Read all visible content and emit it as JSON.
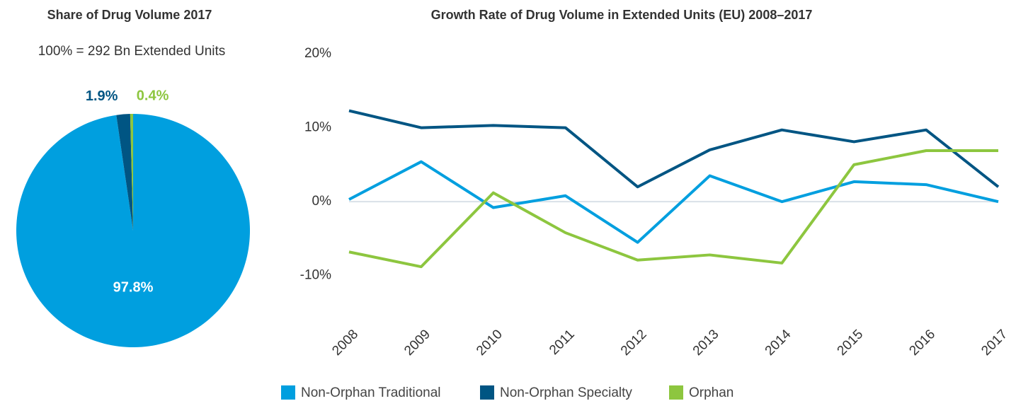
{
  "chart_data": [
    {
      "type": "pie",
      "title": "Share of Drug Volume 2017",
      "subtitle": "100% = 292 Bn Extended Units",
      "values": [
        97.8,
        1.9,
        0.4
      ],
      "value_labels": [
        "97.8%",
        "1.9%",
        "0.4%"
      ],
      "colors": [
        "#009fdf",
        "#005583",
        "#8dc63f"
      ]
    },
    {
      "type": "line",
      "title": "Growth Rate of Drug Volume in Extended Units (EU) 2008–2017",
      "categories": [
        "2008",
        "2009",
        "2010",
        "2011",
        "2012",
        "2013",
        "2014",
        "2015",
        "2016",
        "2017"
      ],
      "series": [
        {
          "name": "Non-Orphan Traditional",
          "color": "#009fdf",
          "values": [
            0.3,
            5.4,
            -0.8,
            0.8,
            -5.5,
            3.5,
            0,
            2.7,
            2.3,
            0
          ]
        },
        {
          "name": "Non-Orphan Specialty",
          "color": "#005583",
          "values": [
            12.3,
            10.0,
            10.3,
            10.0,
            2.0,
            7.0,
            9.7,
            8.1,
            9.7,
            2.0
          ]
        },
        {
          "name": "Orphan",
          "color": "#8dc63f",
          "values": [
            -6.8,
            -8.8,
            1.2,
            -4.2,
            -7.9,
            -7.2,
            -8.3,
            5.0,
            6.9,
            6.9
          ]
        }
      ],
      "ylim": [
        -15,
        20
      ],
      "yticks": [
        {
          "value": -10,
          "label": "-10%"
        },
        {
          "value": 0,
          "label": "0%"
        },
        {
          "value": 10,
          "label": "10%"
        },
        {
          "value": 20,
          "label": "20%"
        }
      ],
      "grid": false,
      "legend": "bottom"
    }
  ]
}
